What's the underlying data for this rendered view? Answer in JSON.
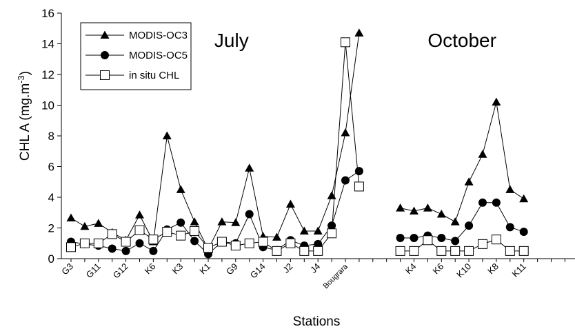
{
  "chart_data": {
    "type": "line",
    "xlabel": "Stations",
    "ylabel": "CHL A (mg.m",
    "ylabel_sup": "-3",
    "ylabel_end": ")",
    "ylim": [
      0,
      16
    ],
    "yticks": [
      0,
      2,
      4,
      6,
      8,
      10,
      12,
      14,
      16
    ],
    "n_positions": 38,
    "x_tick_labels": [
      {
        "label": "G3",
        "pos": 0
      },
      {
        "label": "G11",
        "pos": 2
      },
      {
        "label": "G12",
        "pos": 4
      },
      {
        "label": "K6",
        "pos": 6
      },
      {
        "label": "K3",
        "pos": 8
      },
      {
        "label": "K1",
        "pos": 10
      },
      {
        "label": "G9",
        "pos": 12
      },
      {
        "label": "G14",
        "pos": 14
      },
      {
        "label": "J2",
        "pos": 16
      },
      {
        "label": "J4",
        "pos": 18
      },
      {
        "label": "Bougrara",
        "pos": 20
      },
      {
        "label": "K4",
        "pos": 25
      },
      {
        "label": "K6",
        "pos": 27
      },
      {
        "label": "K10",
        "pos": 29
      },
      {
        "label": "K8",
        "pos": 31
      },
      {
        "label": "K11",
        "pos": 33
      }
    ],
    "annotations": [
      {
        "text": "July",
        "x_pos": 11.7,
        "y": 13.8
      },
      {
        "text": "October",
        "x_pos": 28.5,
        "y": 13.8
      }
    ],
    "legend": {
      "placement": "top-left"
    },
    "series": [
      {
        "name": "MODIS-OC3",
        "marker": "triangle",
        "segments": [
          {
            "start": 0,
            "values": [
              2.65,
              2.1,
              2.3,
              1.7,
              1.2,
              2.85,
              1.1,
              8.0,
              4.5,
              2.4,
              0.6,
              2.4,
              2.35,
              5.9,
              1.45,
              1.4,
              3.55,
              1.8,
              1.8,
              4.1,
              8.2,
              14.7
            ]
          },
          {
            "start": 24,
            "values": [
              3.3,
              3.1,
              3.3,
              2.9,
              2.4,
              5.0,
              6.8,
              10.2,
              4.5,
              3.9
            ]
          }
        ]
      },
      {
        "name": "MODIS-OC5",
        "marker": "circle",
        "segments": [
          {
            "start": 0,
            "values": [
              1.1,
              0.95,
              0.85,
              0.65,
              0.5,
              1.0,
              0.5,
              1.9,
              2.35,
              1.15,
              0.3,
              1.1,
              1.0,
              2.9,
              0.75,
              0.55,
              1.2,
              0.85,
              0.95,
              2.15,
              5.1,
              5.7
            ]
          },
          {
            "start": 24,
            "values": [
              1.35,
              1.35,
              1.5,
              1.35,
              1.15,
              2.15,
              3.65,
              3.65,
              2.05,
              1.75
            ]
          }
        ]
      },
      {
        "name": "in situ CHL",
        "marker": "square",
        "segments": [
          {
            "start": 0,
            "values": [
              0.75,
              1.0,
              1.0,
              1.6,
              1.1,
              1.85,
              1.25,
              1.75,
              1.5,
              1.8,
              0.7,
              1.1,
              0.85,
              1.0,
              1.1,
              0.5,
              1.0,
              0.5,
              0.5,
              1.65,
              14.1,
              4.7
            ]
          },
          {
            "start": 24,
            "values": [
              0.5,
              0.5,
              1.2,
              0.5,
              0.5,
              0.5,
              0.95,
              1.25,
              0.5,
              0.5
            ]
          }
        ]
      }
    ]
  }
}
